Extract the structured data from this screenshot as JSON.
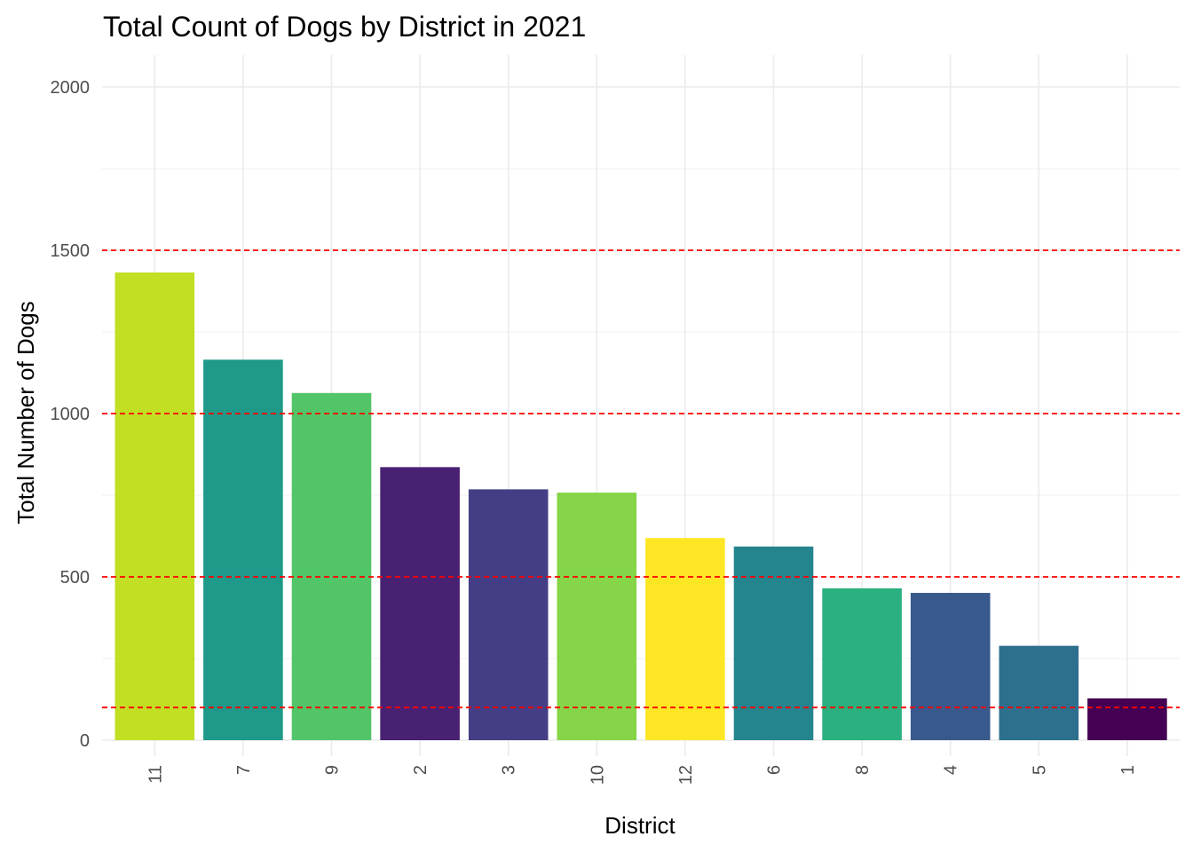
{
  "chart_data": {
    "type": "bar",
    "title": "Total Count of Dogs by District in 2021",
    "xlabel": "District",
    "ylabel": "Total Number of Dogs",
    "categories": [
      "11",
      "7",
      "9",
      "2",
      "3",
      "10",
      "12",
      "6",
      "8",
      "4",
      "5",
      "1"
    ],
    "values": [
      1432,
      1165,
      1063,
      836,
      768,
      758,
      619,
      593,
      465,
      451,
      289,
      128
    ],
    "colors": [
      "#C2DF23",
      "#1F9A8A",
      "#52C569",
      "#482173",
      "#433E85",
      "#86D549",
      "#FDE725",
      "#25858E",
      "#2BB07F",
      "#38598C",
      "#2D708E",
      "#440154"
    ],
    "ylim": [
      0,
      2000
    ],
    "yticks": [
      0,
      500,
      1000,
      1500,
      2000
    ],
    "grid": true,
    "reference_lines": {
      "values": [
        100,
        500,
        1000,
        1500
      ],
      "color": "#FF0000",
      "style": "dashed"
    },
    "legend": "none"
  }
}
